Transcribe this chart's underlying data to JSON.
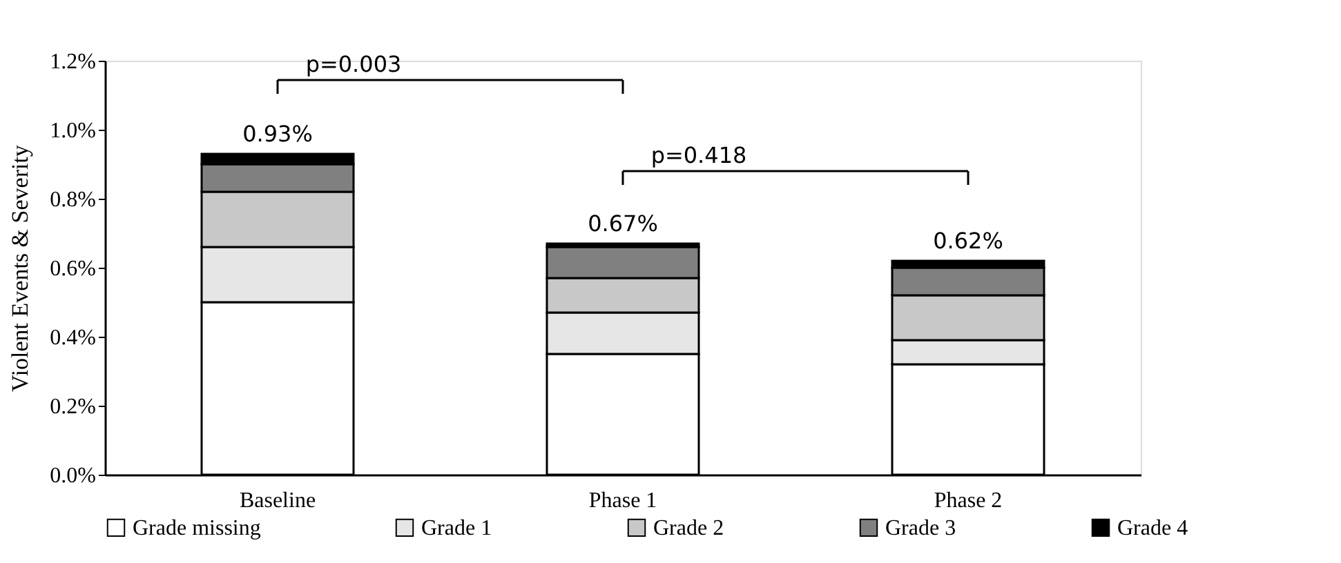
{
  "chart_data": {
    "type": "bar",
    "stacked": true,
    "ylabel": "Violent Events & Severity",
    "categories": [
      "Baseline",
      "Phase 1",
      "Phase 2"
    ],
    "series": [
      {
        "name": "Grade missing",
        "color": "#ffffff",
        "values": [
          0.5,
          0.35,
          0.32
        ]
      },
      {
        "name": "Grade 1",
        "color": "#e6e6e6",
        "values": [
          0.16,
          0.12,
          0.07
        ]
      },
      {
        "name": "Grade 2",
        "color": "#c8c8c8",
        "values": [
          0.16,
          0.1,
          0.13
        ]
      },
      {
        "name": "Grade 3",
        "color": "#808080",
        "values": [
          0.08,
          0.09,
          0.08
        ]
      },
      {
        "name": "Grade 4",
        "color": "#000000",
        "values": [
          0.03,
          0.01,
          0.02
        ]
      }
    ],
    "totals": [
      "0.93%",
      "0.67%",
      "0.62%"
    ],
    "ylim": [
      0,
      1.2
    ],
    "yticks": [
      {
        "value": 0,
        "label": "0.0%"
      },
      {
        "value": 0.2,
        "label": "0.2%"
      },
      {
        "value": 0.4,
        "label": "0.4%"
      },
      {
        "value": 0.6,
        "label": "0.6%"
      },
      {
        "value": 0.8,
        "label": "0.8%"
      },
      {
        "value": 1.0,
        "label": "1.0%"
      },
      {
        "value": 1.2,
        "label": "1.2%"
      }
    ],
    "annotations": [
      "p=0.003",
      "p=0.418"
    ],
    "grid": false,
    "legend": "bottom"
  }
}
